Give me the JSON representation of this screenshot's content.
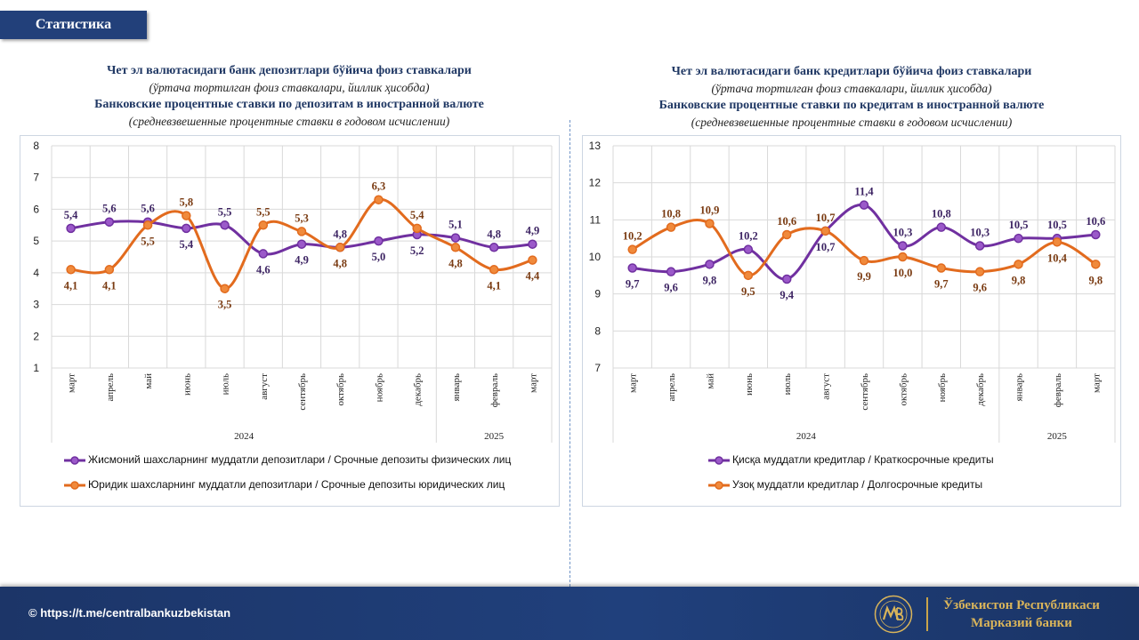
{
  "header": {
    "badge": "Статистика"
  },
  "left": {
    "title_uz": "Чет эл валютасидаги банк депозитлари бўйича фоиз ставкалари",
    "subtitle_uz": "(ўртача тортилган фоиз ставкалари, йиллик ҳисобда)",
    "title_ru": "Банковские процентные ставки по депозитам в иностранной валюте",
    "subtitle_ru": "(средневзвешенные процентные ставки в годовом исчислении)",
    "legend": [
      "Жисмоний шахсларнинг муддатли депозитлари / Срочные депозиты физических лиц",
      "Юридик шахсларнинг муддатли депозитлари / Срочные депозиты юридических лиц"
    ]
  },
  "right": {
    "title_uz": "Чет эл валютасидаги банк кредитлари бўйича фоиз ставкалари",
    "subtitle_uz": "(ўртача тортилган фоиз ставкалари, йиллик ҳисобда)",
    "title_ru": "Банковские процентные ставки по кредитам в иностранной валюте",
    "subtitle_ru": "(средневзвешенные процентные ставки в годовом исчислении)",
    "legend": [
      "Қисқа муддатли кредитлар / Краткосрочные кредиты",
      "Узоқ муддатли кредитлар / Долгосрочные кредиты"
    ]
  },
  "footer": {
    "link": "© https://t.me/centralbankuzbekistan",
    "bank_line1": "Ўзбекистон Республикаси",
    "bank_line2": "Марказий банки"
  },
  "colors": {
    "purple": "#7030a0",
    "orange": "#e26b1e",
    "navy": "#22407a",
    "gold": "#d9b45a"
  },
  "chart_data": [
    {
      "type": "line",
      "categories": [
        "март",
        "апрель",
        "май",
        "июнь",
        "июль",
        "август",
        "сентябрь",
        "октябрь",
        "ноябрь",
        "декабрь",
        "январь",
        "февраль",
        "март"
      ],
      "year_groups": [
        {
          "label": "2024",
          "count": 10
        },
        {
          "label": "2025",
          "count": 3
        }
      ],
      "ylim": [
        1,
        8
      ],
      "yticks": [
        1,
        2,
        3,
        4,
        5,
        6,
        7,
        8
      ],
      "series": [
        {
          "name": "Жисмоний шахсларнинг муддатли депозитлари / Срочные депозиты физических лиц",
          "color": "#7030a0",
          "values": [
            5.4,
            5.6,
            5.6,
            5.4,
            5.5,
            4.6,
            4.9,
            4.8,
            5.0,
            5.2,
            5.1,
            4.8,
            4.9
          ],
          "label_pos": [
            "above",
            "above",
            "above",
            "below",
            "above",
            "below",
            "below",
            "above",
            "below",
            "below",
            "above",
            "above",
            "above"
          ]
        },
        {
          "name": "Юридик шахсларнинг муддатли депозитлари / Срочные депозиты юридических лиц",
          "color": "#e26b1e",
          "values": [
            4.1,
            4.1,
            5.5,
            5.8,
            3.5,
            5.5,
            5.3,
            4.8,
            6.3,
            5.4,
            4.8,
            4.1,
            4.4
          ],
          "label_pos": [
            "below",
            "below",
            "below",
            "above",
            "below",
            "above",
            "above",
            "below",
            "above",
            "above",
            "below",
            "below",
            "below"
          ]
        }
      ]
    },
    {
      "type": "line",
      "categories": [
        "март",
        "апрель",
        "май",
        "июнь",
        "июль",
        "август",
        "сентябрь",
        "октябрь",
        "ноябрь",
        "декабрь",
        "январь",
        "февраль",
        "март"
      ],
      "year_groups": [
        {
          "label": "2024",
          "count": 10
        },
        {
          "label": "2025",
          "count": 3
        }
      ],
      "ylim": [
        7,
        13
      ],
      "yticks": [
        7,
        8,
        9,
        10,
        11,
        12,
        13
      ],
      "series": [
        {
          "name": "Қисқа муддатли кредитлар / Краткосрочные кредиты",
          "color": "#7030a0",
          "values": [
            9.7,
            9.6,
            9.8,
            10.2,
            9.4,
            10.7,
            11.4,
            10.3,
            10.8,
            10.3,
            10.5,
            10.5,
            10.6
          ],
          "label_pos": [
            "below",
            "below",
            "below",
            "above",
            "below",
            "below",
            "above",
            "above",
            "above",
            "above",
            "above",
            "above",
            "above"
          ]
        },
        {
          "name": "Узоқ муддатли кредитлар / Долгосрочные кредиты",
          "color": "#e26b1e",
          "values": [
            10.2,
            10.8,
            10.9,
            9.5,
            10.6,
            10.7,
            9.9,
            10.0,
            9.7,
            9.6,
            9.8,
            10.4,
            9.8
          ],
          "label_pos": [
            "above",
            "above",
            "above",
            "below",
            "above",
            "above",
            "below",
            "below",
            "below",
            "below",
            "below",
            "below",
            "below"
          ]
        }
      ]
    }
  ]
}
